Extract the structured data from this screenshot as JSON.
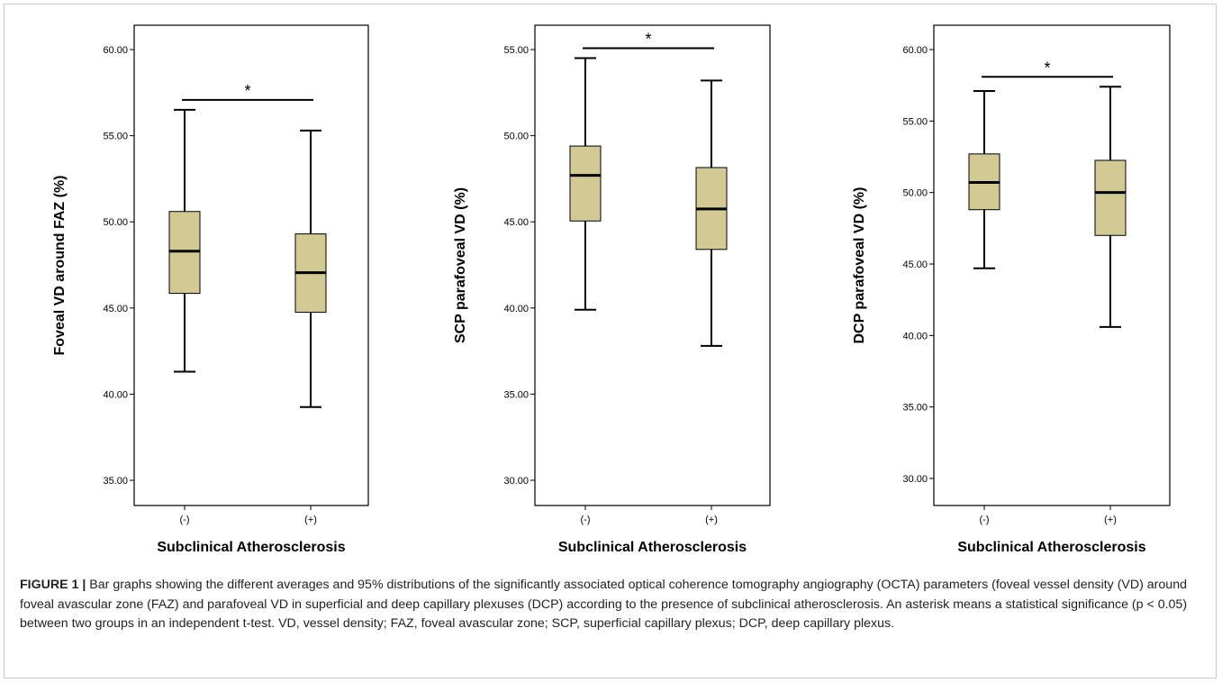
{
  "chart_data": [
    {
      "type": "boxplot",
      "ylabel": "Foveal VD around FAZ (%)",
      "xlabel": "Subclinical Atherosclerosis",
      "ylim": [
        35,
        60
      ],
      "y_ticks": [
        "35.00",
        "40.00",
        "45.00",
        "50.00",
        "55.00",
        "60.00"
      ],
      "categories": [
        "(-)",
        "(+)"
      ],
      "boxes": [
        {
          "min": 41.3,
          "q1": 45.85,
          "median": 48.3,
          "q3": 50.6,
          "max": 56.5
        },
        {
          "min": 39.25,
          "q1": 44.75,
          "median": 47.05,
          "q3": 49.3,
          "max": 55.3
        }
      ],
      "significance": "*"
    },
    {
      "type": "boxplot",
      "ylabel": "SCP parafoveal VD (%)",
      "xlabel": "Subclinical Atherosclerosis",
      "ylim": [
        30,
        55
      ],
      "y_ticks": [
        "30.00",
        "35.00",
        "40.00",
        "45.00",
        "50.00",
        "55.00"
      ],
      "categories": [
        "(-)",
        "(+)"
      ],
      "boxes": [
        {
          "min": 39.9,
          "q1": 45.05,
          "median": 47.7,
          "q3": 49.4,
          "max": 54.5
        },
        {
          "min": 37.8,
          "q1": 43.4,
          "median": 45.75,
          "q3": 48.15,
          "max": 53.2
        }
      ],
      "significance": "*"
    },
    {
      "type": "boxplot",
      "ylabel": "DCP parafoveal VD (%)",
      "xlabel": "Subclinical Atherosclerosis",
      "ylim": [
        30,
        60
      ],
      "y_ticks": [
        "30.00",
        "35.00",
        "40.00",
        "45.00",
        "50.00",
        "55.00",
        "60.00"
      ],
      "categories": [
        "(-)",
        "(+)"
      ],
      "boxes": [
        {
          "min": 44.7,
          "q1": 48.8,
          "median": 50.7,
          "q3": 52.7,
          "max": 57.1
        },
        {
          "min": 40.6,
          "q1": 47.0,
          "median": 50.0,
          "q3": 52.25,
          "max": 57.4
        }
      ],
      "significance": "*"
    }
  ],
  "colors": {
    "box_fill": "#d2c993",
    "stroke": "#000000"
  },
  "caption": {
    "label": "FIGURE 1 |",
    "text": "Bar graphs showing the different averages and 95% distributions of the significantly associated optical coherence tomography angiography (OCTA) parameters (foveal vessel density (VD) around foveal avascular zone (FAZ) and parafoveal VD in superficial and deep capillary plexuses (DCP) according to the presence of subclinical atherosclerosis. An asterisk means a statistical significance (p < 0.05) between two groups in an independent t-test. VD, vessel density; FAZ, foveal avascular zone; SCP, superficial capillary plexus; DCP, deep capillary plexus."
  }
}
